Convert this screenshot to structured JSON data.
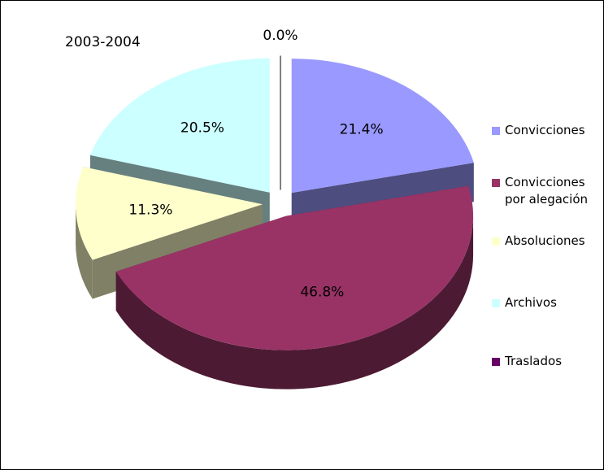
{
  "chart_data": {
    "type": "pie3d",
    "title": "2003-2004",
    "categories": [
      "Convicciones",
      "Convicciones por alegación",
      "Absoluciones",
      "Archivos",
      "Traslados"
    ],
    "values": [
      21.4,
      46.8,
      11.3,
      20.5,
      0.0
    ],
    "value_labels": [
      "21.4%",
      "46.8%",
      "11.3%",
      "20.5%",
      "0.0%"
    ],
    "colors": [
      "#9999ff",
      "#993366",
      "#ffffcc",
      "#ccffff",
      "#660066"
    ],
    "legend": "right"
  }
}
